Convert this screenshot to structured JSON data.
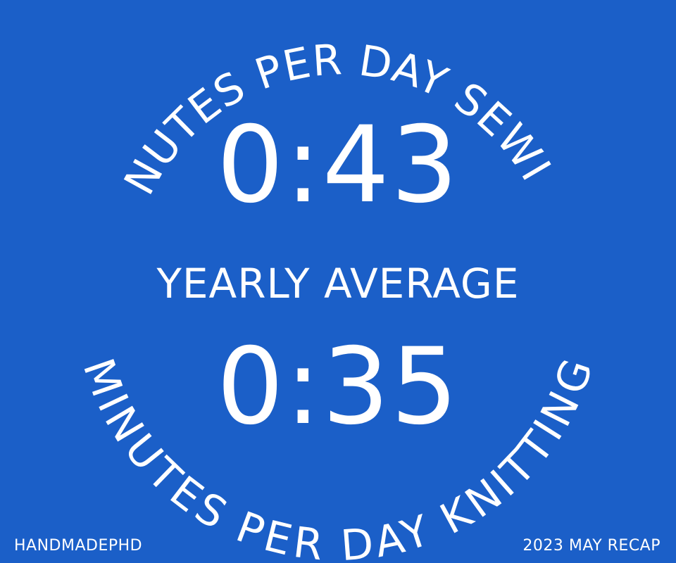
{
  "top_arc_text": "MINUTES PER DAY SEWING",
  "sewing_time": "0:43",
  "middle_label": "YEARLY AVERAGE",
  "knitting_time": "0:35",
  "bottom_arc_text": "MINUTES PER DAY KNITTING",
  "footer": {
    "brand": "HANDMADEPHD",
    "recap": "2023 MAY RECAP"
  },
  "colors": {
    "background": "#1b5fc8",
    "text": "#ffffff"
  }
}
